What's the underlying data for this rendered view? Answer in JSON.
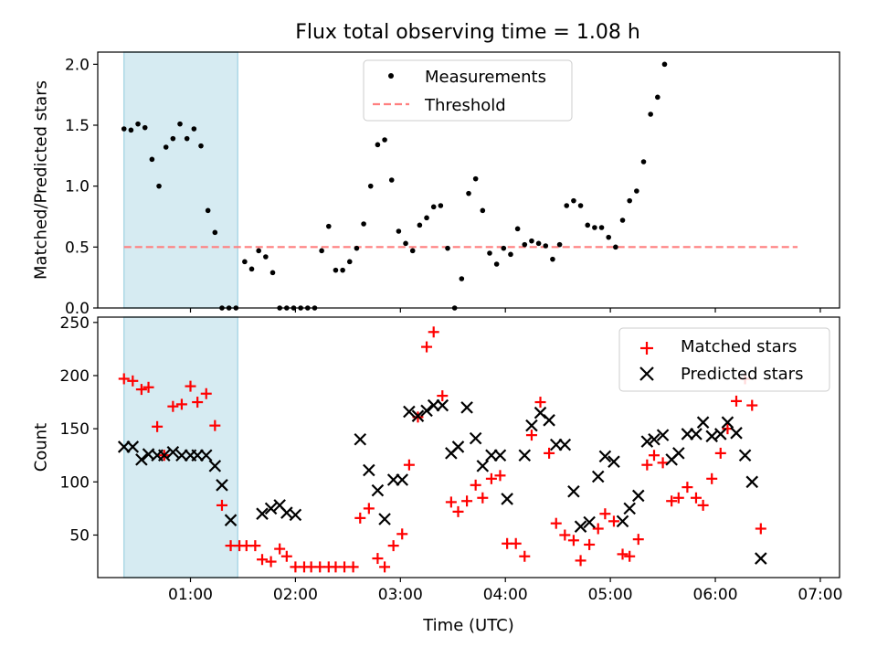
{
  "title": "Flux total observing time = 1.08 h",
  "chart_data": [
    {
      "type": "scatter",
      "ylabel": "Matched/Predicted stars",
      "xlabel": "",
      "xlim": [
        "00:07",
        "07:11"
      ],
      "ylim": [
        0,
        2.1
      ],
      "x_ticks": [
        "01:00",
        "02:00",
        "03:00",
        "04:00",
        "05:00",
        "06:00",
        "07:00"
      ],
      "y_ticks": [
        "0.0",
        "0.5",
        "1.0",
        "1.5",
        "2.0"
      ],
      "highlight_span": [
        "00:22",
        "01:27"
      ],
      "legend": {
        "position": "upper center",
        "entries": [
          "Measurements",
          "Threshold"
        ]
      },
      "threshold": {
        "name": "Threshold",
        "value": 0.5,
        "x_range": [
          "00:22",
          "06:47"
        ],
        "color": "#ff7f7f",
        "style": "dashed"
      },
      "series": [
        {
          "name": "Measurements",
          "color": "#000000",
          "marker": "dot",
          "points": [
            [
              "00:22",
              1.47
            ],
            [
              "00:26",
              1.46
            ],
            [
              "00:30",
              1.51
            ],
            [
              "00:34",
              1.48
            ],
            [
              "00:38",
              1.22
            ],
            [
              "00:42",
              1.0
            ],
            [
              "00:46",
              1.32
            ],
            [
              "00:50",
              1.39
            ],
            [
              "00:54",
              1.51
            ],
            [
              "00:58",
              1.39
            ],
            [
              "01:02",
              1.47
            ],
            [
              "01:06",
              1.33
            ],
            [
              "01:10",
              0.8
            ],
            [
              "01:14",
              0.62
            ],
            [
              "01:18",
              0
            ],
            [
              "01:22",
              0
            ],
            [
              "01:26",
              0
            ],
            [
              "01:31",
              0.38
            ],
            [
              "01:35",
              0.32
            ],
            [
              "01:39",
              0.47
            ],
            [
              "01:43",
              0.42
            ],
            [
              "01:47",
              0.29
            ],
            [
              "01:51",
              0
            ],
            [
              "01:55",
              0
            ],
            [
              "01:59",
              0
            ],
            [
              "02:03",
              0
            ],
            [
              "02:07",
              0
            ],
            [
              "02:11",
              0
            ],
            [
              "02:15",
              0.47
            ],
            [
              "02:19",
              0.67
            ],
            [
              "02:23",
              0.31
            ],
            [
              "02:27",
              0.31
            ],
            [
              "02:31",
              0.38
            ],
            [
              "02:35",
              0.49
            ],
            [
              "02:39",
              0.69
            ],
            [
              "02:43",
              1.0
            ],
            [
              "02:47",
              1.34
            ],
            [
              "02:51",
              1.38
            ],
            [
              "02:55",
              1.05
            ],
            [
              "02:59",
              0.63
            ],
            [
              "03:03",
              0.53
            ],
            [
              "03:07",
              0.47
            ],
            [
              "03:11",
              0.68
            ],
            [
              "03:15",
              0.74
            ],
            [
              "03:19",
              0.83
            ],
            [
              "03:23",
              0.84
            ],
            [
              "03:27",
              0.49
            ],
            [
              "03:31",
              0
            ],
            [
              "03:35",
              0.24
            ],
            [
              "03:39",
              0.94
            ],
            [
              "03:43",
              1.06
            ],
            [
              "03:47",
              0.8
            ],
            [
              "03:51",
              0.45
            ],
            [
              "03:55",
              0.36
            ],
            [
              "03:59",
              0.49
            ],
            [
              "04:03",
              0.44
            ],
            [
              "04:07",
              0.65
            ],
            [
              "04:11",
              0.52
            ],
            [
              "04:15",
              0.55
            ],
            [
              "04:19",
              0.53
            ],
            [
              "04:23",
              0.51
            ],
            [
              "04:27",
              0.4
            ],
            [
              "04:31",
              0.52
            ],
            [
              "04:35",
              0.84
            ],
            [
              "04:39",
              0.88
            ],
            [
              "04:43",
              0.84
            ],
            [
              "04:47",
              0.68
            ],
            [
              "04:51",
              0.66
            ],
            [
              "04:55",
              0.66
            ],
            [
              "04:59",
              0.58
            ],
            [
              "05:03",
              0.5
            ],
            [
              "05:07",
              0.72
            ],
            [
              "05:11",
              0.88
            ],
            [
              "05:15",
              0.96
            ],
            [
              "05:19",
              1.2
            ],
            [
              "05:23",
              1.59
            ],
            [
              "05:27",
              1.73
            ],
            [
              "05:31",
              2.0
            ]
          ]
        }
      ]
    },
    {
      "type": "scatter",
      "ylabel": "Count",
      "xlabel": "Time (UTC)",
      "xlim": [
        "00:07",
        "07:11"
      ],
      "ylim": [
        10,
        255
      ],
      "x_ticks": [
        "01:00",
        "02:00",
        "03:00",
        "04:00",
        "05:00",
        "06:00",
        "07:00"
      ],
      "y_ticks": [
        "50",
        "100",
        "150",
        "200",
        "250"
      ],
      "highlight_span": [
        "00:22",
        "01:27"
      ],
      "legend": {
        "position": "upper right",
        "entries": [
          "Matched stars",
          "Predicted stars"
        ]
      },
      "series": [
        {
          "name": "Matched stars",
          "color": "#ff0000",
          "marker": "plus",
          "points": [
            [
              "00:22",
              197
            ],
            [
              "00:27",
              195
            ],
            [
              "00:32",
              187
            ],
            [
              "00:36",
              189
            ],
            [
              "00:41",
              152
            ],
            [
              "00:45",
              125
            ],
            [
              "00:50",
              171
            ],
            [
              "00:55",
              173
            ],
            [
              "01:00",
              190
            ],
            [
              "01:04",
              175
            ],
            [
              "01:09",
              183
            ],
            [
              "01:14",
              153
            ],
            [
              "01:18",
              78
            ],
            [
              "01:23",
              40
            ],
            [
              "01:28",
              40
            ],
            [
              "01:32",
              40
            ],
            [
              "01:37",
              40
            ],
            [
              "01:41",
              27
            ],
            [
              "01:46",
              25
            ],
            [
              "01:51",
              37
            ],
            [
              "01:55",
              30
            ],
            [
              "02:00",
              20
            ],
            [
              "02:05",
              20
            ],
            [
              "02:09",
              20
            ],
            [
              "02:14",
              20
            ],
            [
              "02:19",
              20
            ],
            [
              "02:23",
              20
            ],
            [
              "02:28",
              20
            ],
            [
              "02:33",
              20
            ],
            [
              "02:37",
              66
            ],
            [
              "02:42",
              75
            ],
            [
              "02:47",
              28
            ],
            [
              "02:51",
              20
            ],
            [
              "02:56",
              40
            ],
            [
              "03:01",
              51
            ],
            [
              "03:05",
              116
            ],
            [
              "03:10",
              161
            ],
            [
              "03:15",
              227
            ],
            [
              "03:19",
              241
            ],
            [
              "03:24",
              181
            ],
            [
              "03:29",
              81
            ],
            [
              "03:33",
              72
            ],
            [
              "03:38",
              82
            ],
            [
              "03:43",
              97
            ],
            [
              "03:47",
              85
            ],
            [
              "03:52",
              103
            ],
            [
              "03:57",
              106
            ],
            [
              "04:01",
              42
            ],
            [
              "04:06",
              42
            ],
            [
              "04:11",
              30
            ],
            [
              "04:15",
              144
            ],
            [
              "04:20",
              175
            ],
            [
              "04:25",
              127
            ],
            [
              "04:29",
              61
            ],
            [
              "04:34",
              50
            ],
            [
              "04:39",
              45
            ],
            [
              "04:43",
              26
            ],
            [
              "04:48",
              41
            ],
            [
              "04:53",
              56
            ],
            [
              "04:57",
              70
            ],
            [
              "05:02",
              63
            ],
            [
              "05:07",
              32
            ],
            [
              "05:11",
              30
            ],
            [
              "05:16",
              46
            ],
            [
              "05:21",
              116
            ],
            [
              "05:25",
              125
            ],
            [
              "05:30",
              118
            ],
            [
              "05:35",
              82
            ],
            [
              "05:39",
              85
            ],
            [
              "05:44",
              95
            ],
            [
              "05:49",
              85
            ],
            [
              "05:53",
              78
            ],
            [
              "05:58",
              103
            ],
            [
              "06:03",
              127
            ],
            [
              "06:07",
              150
            ],
            [
              "06:12",
              176
            ],
            [
              "06:17",
              197
            ],
            [
              "06:21",
              172
            ],
            [
              "06:26",
              56
            ]
          ]
        },
        {
          "name": "Predicted stars",
          "color": "#000000",
          "marker": "cross",
          "points": [
            [
              "00:22",
              133
            ],
            [
              "00:27",
              133
            ],
            [
              "00:32",
              121
            ],
            [
              "00:36",
              126
            ],
            [
              "00:41",
              125
            ],
            [
              "00:45",
              125
            ],
            [
              "00:50",
              128
            ],
            [
              "00:55",
              125
            ],
            [
              "01:00",
              125
            ],
            [
              "01:04",
              125
            ],
            [
              "01:09",
              125
            ],
            [
              "01:14",
              115
            ],
            [
              "01:18",
              97
            ],
            [
              "01:23",
              64
            ],
            [
              "01:41",
              70
            ],
            [
              "01:46",
              75
            ],
            [
              "01:51",
              78
            ],
            [
              "01:55",
              71
            ],
            [
              "02:00",
              69
            ],
            [
              "02:37",
              140
            ],
            [
              "02:42",
              111
            ],
            [
              "02:47",
              92
            ],
            [
              "02:51",
              65
            ],
            [
              "02:56",
              102
            ],
            [
              "03:01",
              102
            ],
            [
              "03:05",
              166
            ],
            [
              "03:10",
              162
            ],
            [
              "03:15",
              167
            ],
            [
              "03:19",
              172
            ],
            [
              "03:24",
              172
            ],
            [
              "03:29",
              127
            ],
            [
              "03:33",
              133
            ],
            [
              "03:38",
              170
            ],
            [
              "03:43",
              141
            ],
            [
              "03:47",
              115
            ],
            [
              "03:52",
              125
            ],
            [
              "03:57",
              125
            ],
            [
              "04:01",
              84
            ],
            [
              "04:11",
              125
            ],
            [
              "04:15",
              153
            ],
            [
              "04:20",
              165
            ],
            [
              "04:25",
              158
            ],
            [
              "04:29",
              135
            ],
            [
              "04:34",
              135
            ],
            [
              "04:39",
              91
            ],
            [
              "04:43",
              58
            ],
            [
              "04:48",
              62
            ],
            [
              "04:53",
              105
            ],
            [
              "04:57",
              124
            ],
            [
              "05:02",
              119
            ],
            [
              "05:07",
              63
            ],
            [
              "05:11",
              75
            ],
            [
              "05:16",
              87
            ],
            [
              "05:21",
              138
            ],
            [
              "05:25",
              140
            ],
            [
              "05:30",
              144
            ],
            [
              "05:35",
              121
            ],
            [
              "05:39",
              127
            ],
            [
              "05:44",
              145
            ],
            [
              "05:49",
              145
            ],
            [
              "05:53",
              156
            ],
            [
              "05:58",
              143
            ],
            [
              "06:03",
              145
            ],
            [
              "06:07",
              156
            ],
            [
              "06:12",
              146
            ],
            [
              "06:17",
              125
            ],
            [
              "06:21",
              100
            ],
            [
              "06:26",
              28
            ]
          ]
        }
      ]
    }
  ],
  "colors": {
    "highlight": "#add8e6",
    "matched": "#ff0000",
    "predicted": "#000000",
    "measurements": "#000000",
    "threshold": "#ff7f7f"
  }
}
